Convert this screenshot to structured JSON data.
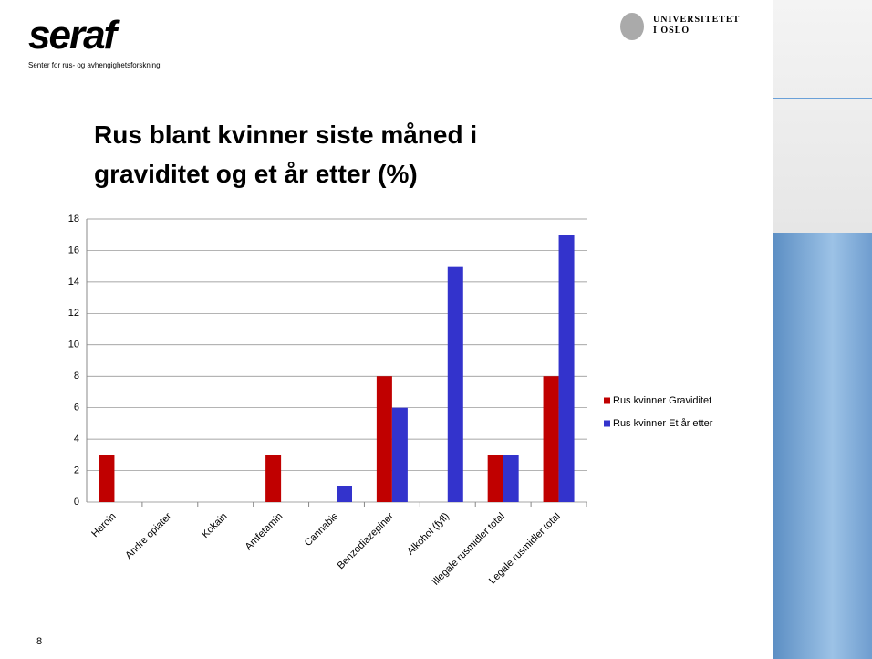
{
  "header": {
    "logo": "seraf",
    "logo_subtitle": "Senter for rus- og avhengighetsforskning",
    "university": [
      "UNIVERSITETET",
      "I OSLO"
    ]
  },
  "slide_number": "8",
  "chart_data": {
    "type": "bar",
    "title": "Rus blant kvinner siste måned i graviditet og et år etter (%)",
    "categories": [
      "Heroin",
      "Andre opiater",
      "Kokain",
      "Amfetamin",
      "Cannabis",
      "Benzodiazepiner",
      "Alkohol (fyll)",
      "Illegale rusmidler total",
      "Legale rusmidler total"
    ],
    "series": [
      {
        "name": "Rus kvinner Graviditet",
        "color": "#c00000",
        "values": [
          3,
          0,
          0,
          3,
          0,
          8,
          0,
          3,
          8
        ]
      },
      {
        "name": "Rus kvinner Et år etter",
        "color": "#3333cc",
        "values": [
          0,
          0,
          0,
          0,
          1,
          6,
          15,
          3,
          17
        ]
      }
    ],
    "ylim": [
      0,
      18
    ],
    "yticks": [
      0,
      2,
      4,
      6,
      8,
      10,
      12,
      14,
      16,
      18
    ],
    "grid": true,
    "legend": "right"
  }
}
